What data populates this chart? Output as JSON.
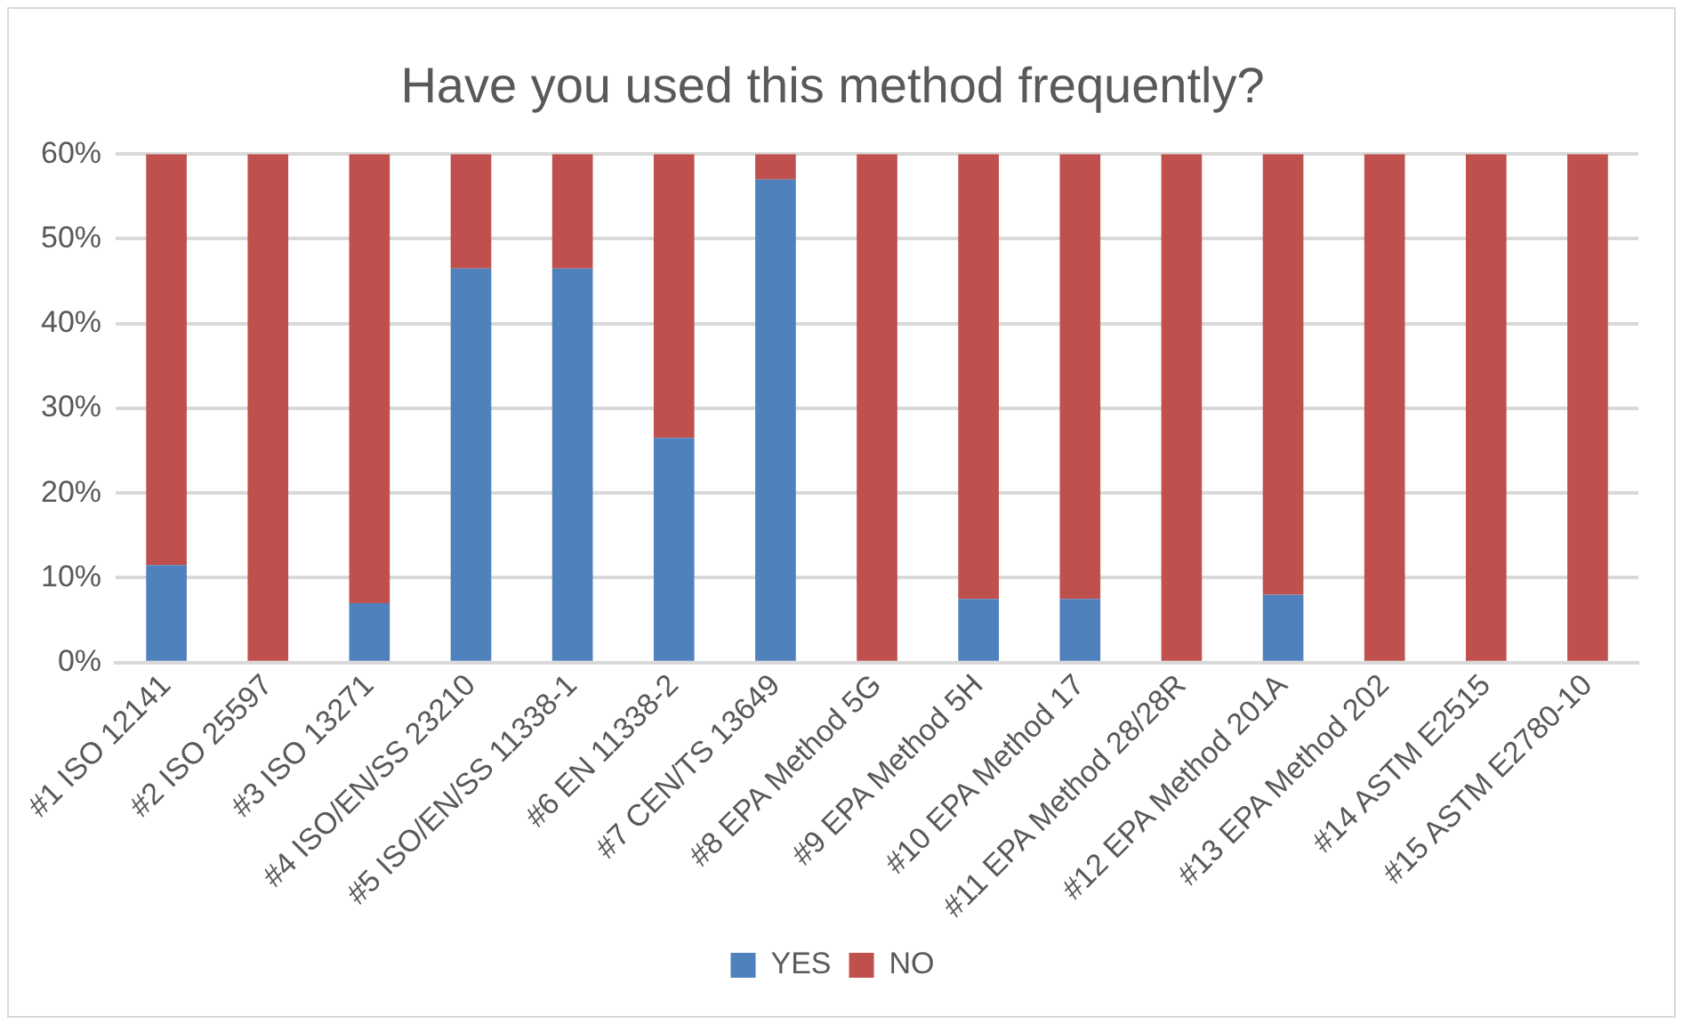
{
  "chart_data": {
    "type": "bar",
    "title": "Have you used this method frequently?",
    "stacked": true,
    "categories": [
      "#1 ISO 12141",
      "#2 ISO 25597",
      "#3 ISO 13271",
      "#4 ISO/EN/SS 23210",
      "#5 ISO/EN/SS 11338-1",
      "#6 EN 11338-2",
      "#7 CEN/TS 13649",
      "#8 EPA Method 5G",
      "#9 EPA Method 5H",
      "#10 EPA Method 17",
      "#11 EPA Method 28/28R",
      "#12 EPA Method 201A",
      "#13 EPA Method 202",
      "#14 ASTM E2515",
      "#15 ASTM E2780-10"
    ],
    "series": [
      {
        "name": "YES",
        "color": "#4f81bd",
        "values": [
          11.5,
          0,
          7,
          46.5,
          46.5,
          26.5,
          57,
          0,
          7.5,
          7.5,
          0,
          8,
          0,
          0,
          0
        ]
      },
      {
        "name": "NO",
        "color": "#c0504d",
        "values": [
          48.5,
          60,
          53,
          13.5,
          13.5,
          33.5,
          3,
          60,
          52.5,
          52.5,
          60,
          52,
          60,
          60,
          60
        ]
      }
    ],
    "ylim": [
      0,
      60
    ],
    "yticks": [
      {
        "value": 0,
        "label": "0%"
      },
      {
        "value": 10,
        "label": "10%"
      },
      {
        "value": 20,
        "label": "20%"
      },
      {
        "value": 30,
        "label": "30%"
      },
      {
        "value": 40,
        "label": "40%"
      },
      {
        "value": 50,
        "label": "50%"
      },
      {
        "value": 60,
        "label": "60%"
      }
    ],
    "grid": "y",
    "legend": "bottom"
  }
}
